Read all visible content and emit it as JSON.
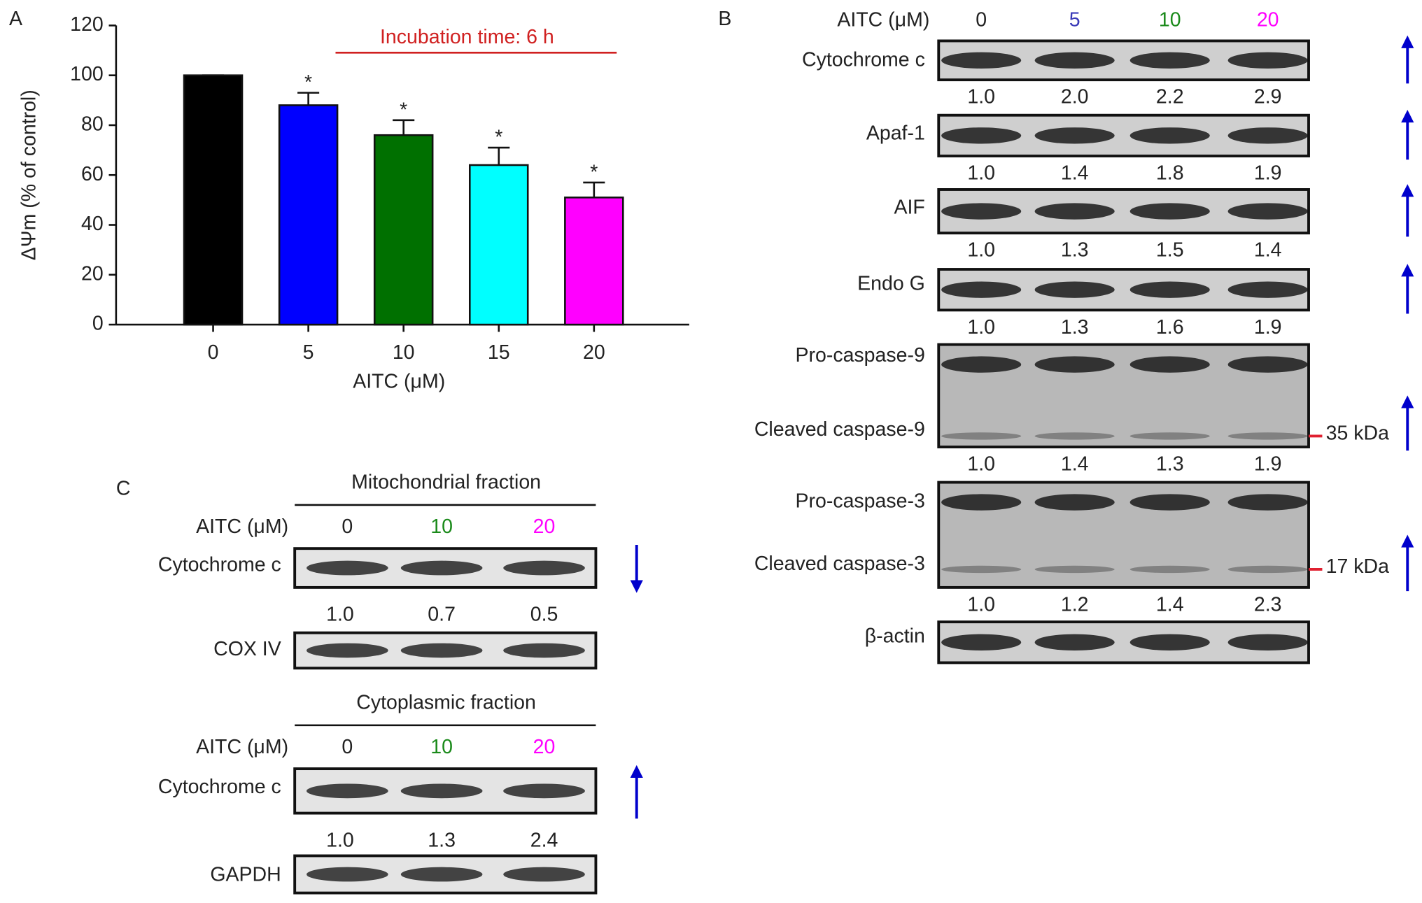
{
  "chart_data": {
    "type": "bar",
    "panel_label": "A",
    "annotation": "Incubation time: 6 h",
    "ylabel": "ΔΨm (% of control)",
    "xlabel": "AITC (μM)",
    "categories": [
      "0",
      "5",
      "10",
      "15",
      "20"
    ],
    "values": [
      100,
      88,
      76,
      64,
      51
    ],
    "errors": [
      0,
      5,
      6,
      7,
      6
    ],
    "markers": [
      null,
      "*",
      "*",
      "*",
      "*"
    ],
    "colors": [
      "#000000",
      "#0000ff",
      "#007000",
      "#00ffff",
      "#ff00ff"
    ],
    "ylim": [
      0,
      120
    ],
    "yticks": [
      0,
      20,
      40,
      60,
      80,
      100,
      120
    ]
  },
  "panel_b": {
    "label": "B",
    "dose_label": "AITC (μM)",
    "doses": [
      "0",
      "5",
      "10",
      "20"
    ],
    "dose_colors": [
      "#222222",
      "#3a3ab8",
      "#1a8a1a",
      "#ff00ff"
    ],
    "blots": [
      {
        "labels": [
          "Cytochrome c"
        ],
        "ratios": [
          "1.0",
          "2.0",
          "2.2",
          "2.9"
        ],
        "trend": "up"
      },
      {
        "labels": [
          "Apaf-1"
        ],
        "ratios": [
          "1.0",
          "1.4",
          "1.8",
          "1.9"
        ],
        "trend": "up"
      },
      {
        "labels": [
          "AIF"
        ],
        "ratios": [
          "1.0",
          "1.3",
          "1.5",
          "1.4"
        ],
        "trend": "up"
      },
      {
        "labels": [
          "Endo G"
        ],
        "ratios": [
          "1.0",
          "1.3",
          "1.6",
          "1.9"
        ],
        "trend": "up"
      },
      {
        "labels": [
          "Pro-caspase-9",
          "Cleaved caspase-9"
        ],
        "marker": "35 kDa",
        "ratios": [
          "1.0",
          "1.4",
          "1.3",
          "1.9"
        ],
        "trend": "up"
      },
      {
        "labels": [
          "Pro-caspase-3",
          "Cleaved caspase-3"
        ],
        "marker": "17 kDa",
        "ratios": [
          "1.0",
          "1.2",
          "1.4",
          "2.3"
        ],
        "trend": "up"
      },
      {
        "labels": [
          "β-actin"
        ]
      }
    ]
  },
  "panel_c": {
    "label": "C",
    "fractions": [
      {
        "title": "Mitochondrial fraction",
        "dose_label": "AITC (μM)",
        "doses": [
          "0",
          "10",
          "20"
        ],
        "dose_colors": [
          "#222222",
          "#1a8a1a",
          "#ff00ff"
        ],
        "blots": [
          {
            "labels": [
              "Cytochrome c"
            ],
            "ratios": [
              "1.0",
              "0.7",
              "0.5"
            ],
            "trend": "down"
          },
          {
            "labels": [
              "COX IV"
            ]
          }
        ]
      },
      {
        "title": "Cytoplasmic fraction",
        "dose_label": "AITC (μM)",
        "doses": [
          "0",
          "10",
          "20"
        ],
        "dose_colors": [
          "#222222",
          "#1a8a1a",
          "#ff00ff"
        ],
        "blots": [
          {
            "labels": [
              "Cytochrome c"
            ],
            "ratios": [
              "1.0",
              "1.3",
              "2.4"
            ],
            "trend": "up"
          },
          {
            "labels": [
              "GAPDH"
            ]
          }
        ]
      }
    ]
  }
}
